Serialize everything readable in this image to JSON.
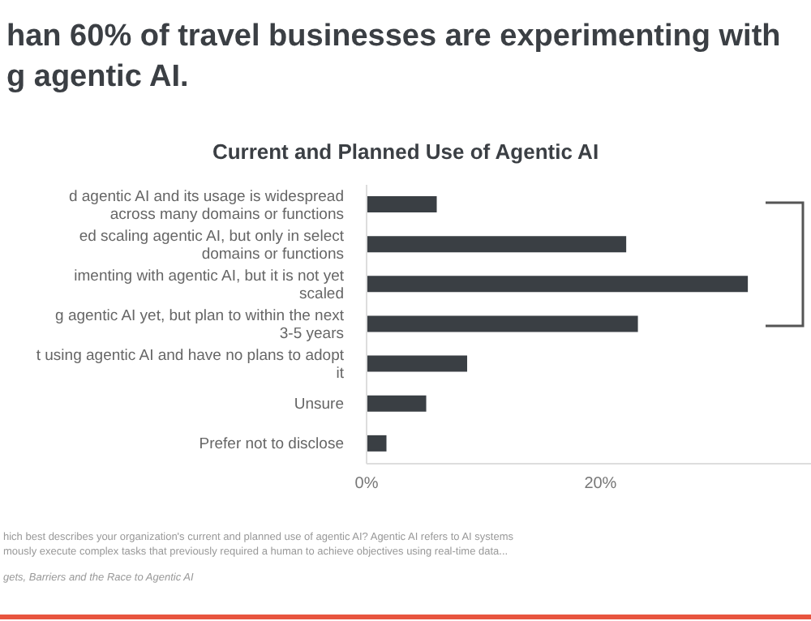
{
  "chart_data": {
    "type": "bar",
    "orientation": "horizontal",
    "title": "han 60% of travel businesses are experimenting with\ng agentic AI.",
    "subtitle": "Current and Planned Use of Agentic AI",
    "categories": [
      "d agentic AI and its usage is widespread across many domains or functions",
      "ed scaling agentic AI, but only in select domains or functions",
      "imenting with agentic AI, but it is not yet scaled",
      "g agentic AI yet, but plan to within the next 3-5 years",
      "t using agentic AI and have no plans to adopt it",
      "Unsure",
      "Prefer not to disclose"
    ],
    "values": [
      6.0,
      22.2,
      32.6,
      23.2,
      8.6,
      5.1,
      1.7
    ],
    "color": "#3a3f44",
    "xlim": [
      0,
      38
    ],
    "xticks": [
      {
        "value": 0,
        "label": "0%"
      },
      {
        "value": 20,
        "label": "20%"
      }
    ],
    "grid": false,
    "legend": false,
    "annotations": [
      "hich best describes your organization's current and planned use of agentic AI? Agentic AI refers to AI systems",
      "mously execute complex tasks that previously required a human to achieve objectives using real-time data...",
      "gets, Barriers and the Race to Agentic AI"
    ]
  }
}
